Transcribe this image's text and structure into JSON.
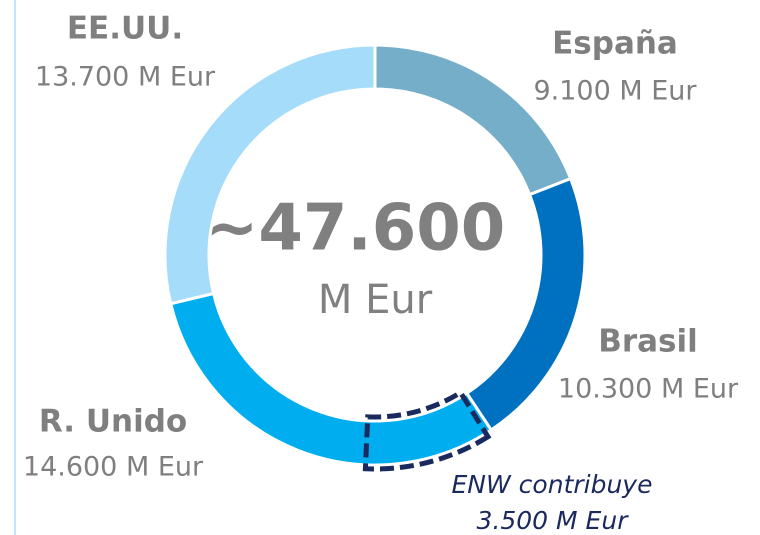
{
  "chart_data": {
    "type": "pie",
    "categories": [
      "España",
      "Brasil",
      "R. Unido",
      "EE.UU."
    ],
    "values": [
      9100,
      10300,
      14600,
      13700
    ],
    "value_labels": [
      "9.100 M Eur",
      "10.300 M Eur",
      "14.600 M Eur",
      "13.700 M Eur"
    ],
    "colors": [
      "#74aec8",
      "#0070c0",
      "#00aeef",
      "#a4dcfa"
    ],
    "donut": true,
    "center_label": "~47.600",
    "center_unit": "M Eur",
    "highlight": {
      "name": "ENW contribuye",
      "value": 3500,
      "value_label": "3.500 M Eur",
      "color": "#1a2a5e"
    }
  }
}
